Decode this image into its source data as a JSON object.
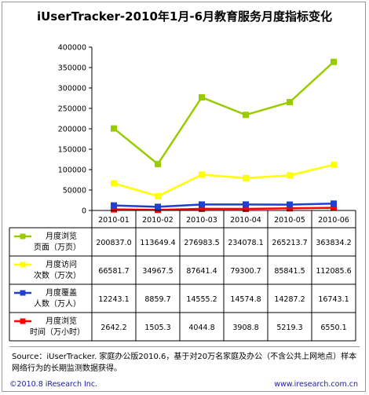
{
  "chart_data": {
    "type": "line",
    "title": "iUserTracker-2010年1月-6月教育服务月度指标变化",
    "categories": [
      "2010-01",
      "2010-02",
      "2010-03",
      "2010-04",
      "2010-05",
      "2010-06"
    ],
    "y_ticks": [
      "0",
      "50000",
      "100000",
      "150000",
      "200000",
      "250000",
      "300000",
      "350000",
      "400000"
    ],
    "ylim": [
      0,
      400000
    ],
    "grid": false,
    "series": [
      {
        "name_line1": "月度浏览",
        "name_line2": "页面（万页）",
        "color": "#99cc00",
        "marker": "square",
        "values": [
          200837.0,
          113649.4,
          276983.5,
          234078.1,
          265213.7,
          363834.2
        ],
        "labels": [
          "200837.0",
          "113649.4",
          "276983.5",
          "234078.1",
          "265213.7",
          "363834.2"
        ]
      },
      {
        "name_line1": "月度访问",
        "name_line2": "次数（万次）",
        "color": "#ffff00",
        "marker": "square",
        "values": [
          66581.7,
          34967.5,
          87641.4,
          79300.7,
          85841.5,
          112085.6
        ],
        "labels": [
          "66581.7",
          "34967.5",
          "87641.4",
          "79300.7",
          "85841.5",
          "112085.6"
        ]
      },
      {
        "name_line1": "月度覆盖",
        "name_line2": "人数（万人）",
        "color": "#1f3fcf",
        "marker": "square",
        "values": [
          12243.1,
          8859.7,
          14555.2,
          14574.8,
          14287.2,
          16743.1
        ],
        "labels": [
          "12243.1",
          "8859.7",
          "14555.2",
          "14574.8",
          "14287.2",
          "16743.1"
        ]
      },
      {
        "name_line1": "月度浏览",
        "name_line2": "时间（万小时）",
        "color": "#ff0000",
        "marker": "square",
        "values": [
          2642.2,
          1505.3,
          4044.8,
          3908.8,
          5219.3,
          6550.1
        ],
        "labels": [
          "2642.2",
          "1505.3",
          "4044.8",
          "3908.8",
          "5219.3",
          "6550.1"
        ]
      }
    ]
  },
  "source_text": "Source：iUserTracker. 家庭办公版2010.6，基于对20万名家庭及办公（不含公共上网地点）样本网络行为的长期监测数据获得。",
  "footer": {
    "copyright": "©2010.8 iResearch Inc.",
    "website": "www.iresearch.com.cn"
  }
}
